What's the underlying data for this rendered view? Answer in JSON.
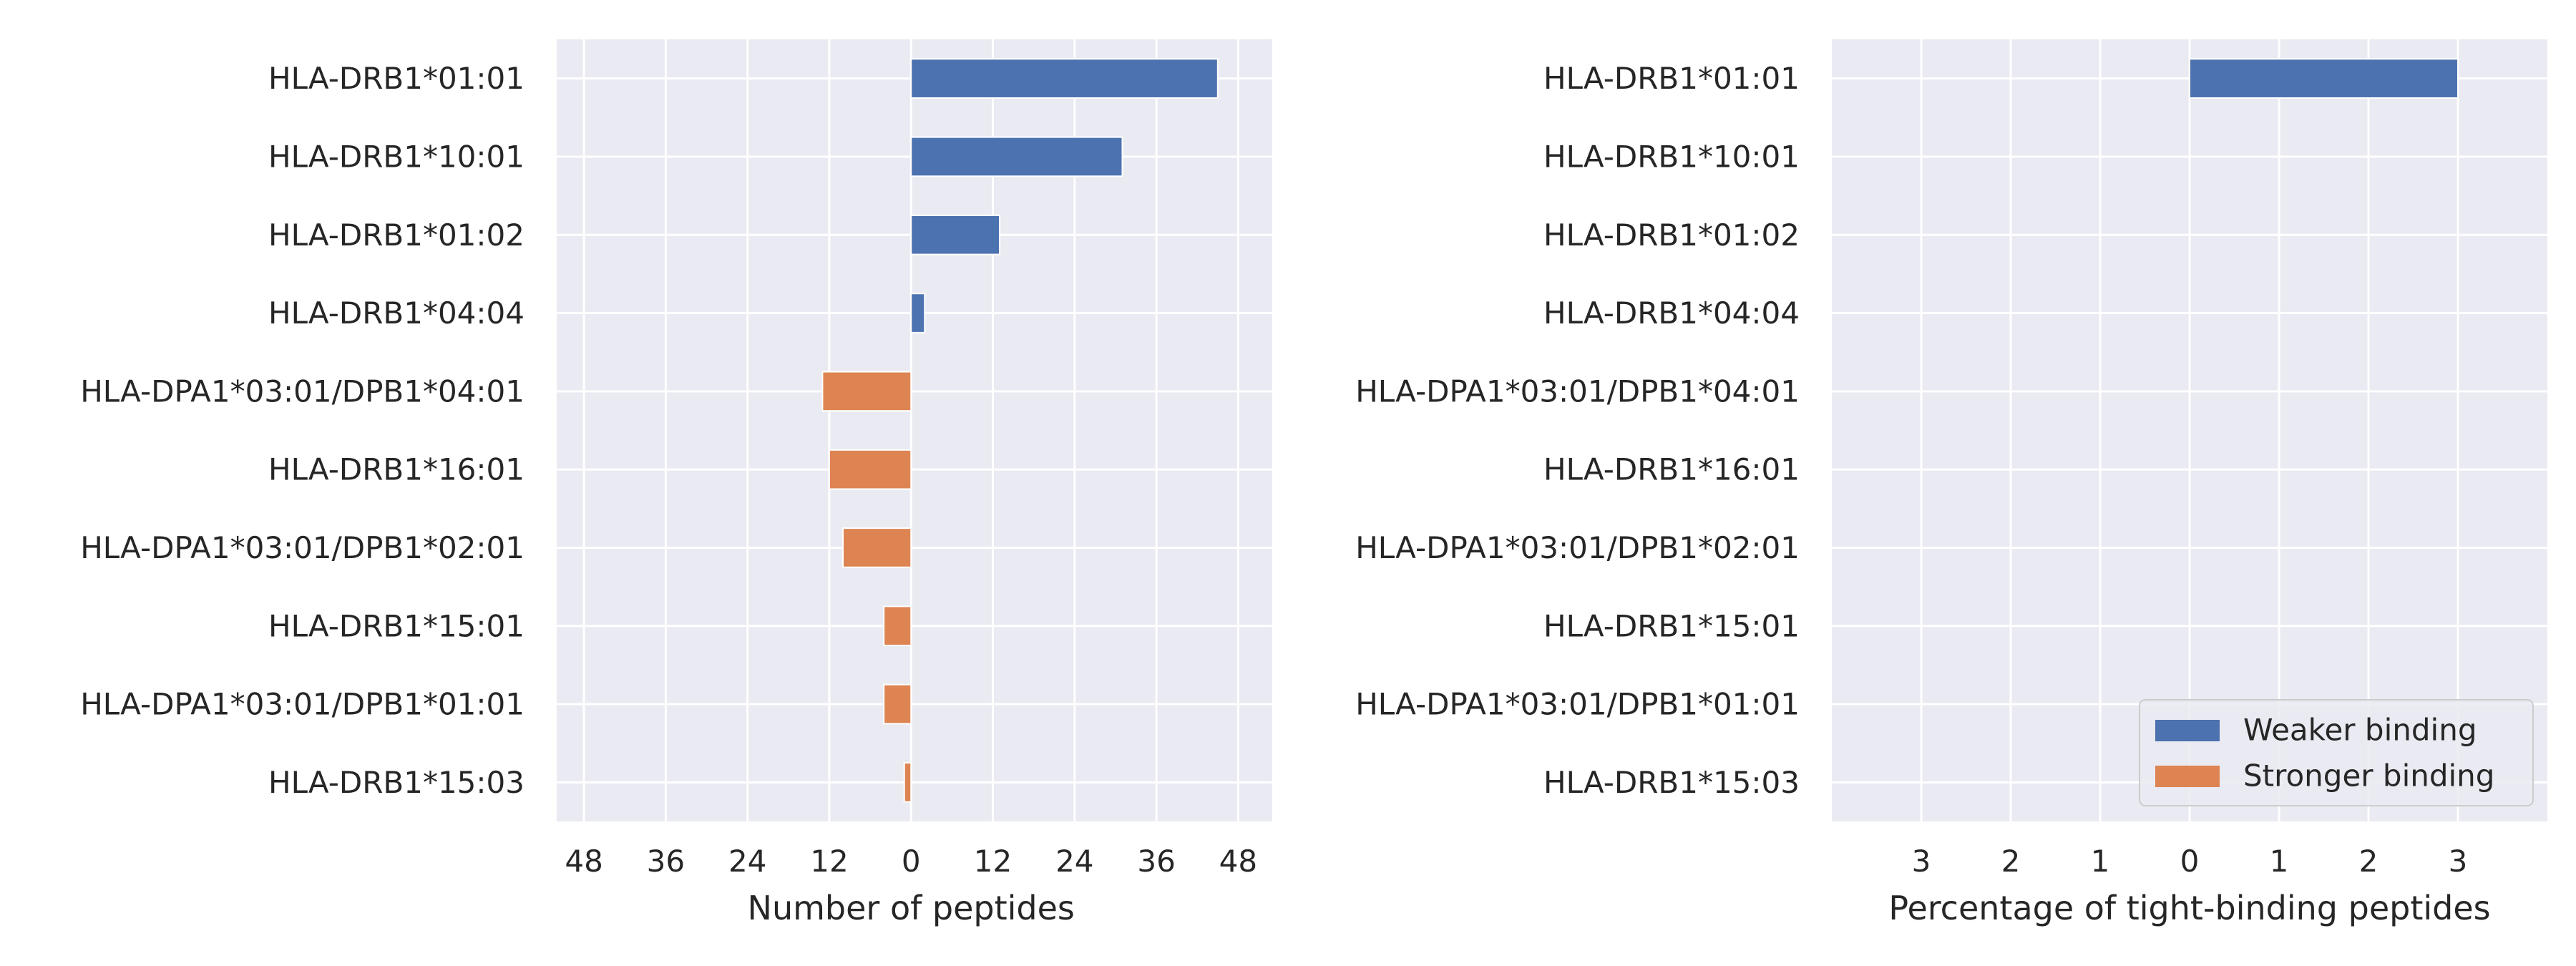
{
  "colors": {
    "panel_bg": "#EAEAF2",
    "grid": "#FFFFFF",
    "weaker": "#4C72B0",
    "stronger": "#DD8452",
    "text": "#262626"
  },
  "chart_data": [
    {
      "type": "bar",
      "orientation": "horizontal",
      "xlabel": "Number of peptides",
      "xlim": [
        -52,
        53
      ],
      "xticks": [
        -48,
        -36,
        -24,
        -12,
        0,
        12,
        24,
        36,
        48
      ],
      "xtick_labels": [
        "48",
        "36",
        "24",
        "12",
        "0",
        "12",
        "24",
        "36",
        "48"
      ],
      "categories": [
        "HLA-DRB1*01:01",
        "HLA-DRB1*10:01",
        "HLA-DRB1*01:02",
        "HLA-DRB1*04:04",
        "HLA-DPA1*03:01/DPB1*04:01",
        "HLA-DRB1*16:01",
        "HLA-DPA1*03:01/DPB1*02:01",
        "HLA-DRB1*15:01",
        "HLA-DPA1*03:01/DPB1*01:01",
        "HLA-DRB1*15:03"
      ],
      "series": [
        {
          "name": "Weaker binding",
          "color_key": "weaker",
          "values": [
            45,
            31,
            13,
            2,
            0,
            0,
            0,
            0,
            0,
            0
          ]
        },
        {
          "name": "Stronger binding",
          "color_key": "stronger",
          "values": [
            0,
            0,
            0,
            0,
            -13,
            -12,
            -10,
            -4,
            -4,
            -1
          ]
        }
      ],
      "grid": true
    },
    {
      "type": "bar",
      "orientation": "horizontal",
      "xlabel": "Percentage of tight-binding peptides",
      "xlim": [
        -4,
        4
      ],
      "xticks": [
        -3,
        -2,
        -1,
        0,
        1,
        2,
        3
      ],
      "xtick_labels": [
        "3",
        "2",
        "1",
        "0",
        "1",
        "2",
        "3"
      ],
      "categories": [
        "HLA-DRB1*01:01",
        "HLA-DRB1*10:01",
        "HLA-DRB1*01:02",
        "HLA-DRB1*04:04",
        "HLA-DPA1*03:01/DPB1*04:01",
        "HLA-DRB1*16:01",
        "HLA-DPA1*03:01/DPB1*02:01",
        "HLA-DRB1*15:01",
        "HLA-DPA1*03:01/DPB1*01:01",
        "HLA-DRB1*15:03"
      ],
      "series": [
        {
          "name": "Weaker binding",
          "color_key": "weaker",
          "values": [
            3,
            0,
            0,
            0,
            0,
            0,
            0,
            0,
            0,
            0
          ]
        },
        {
          "name": "Stronger binding",
          "color_key": "stronger",
          "values": [
            0,
            0,
            0,
            0,
            0,
            0,
            0,
            0,
            0,
            0
          ]
        }
      ],
      "grid": true,
      "legend": {
        "placement": "lower-right",
        "entries": [
          "Weaker binding",
          "Stronger binding"
        ]
      }
    }
  ]
}
